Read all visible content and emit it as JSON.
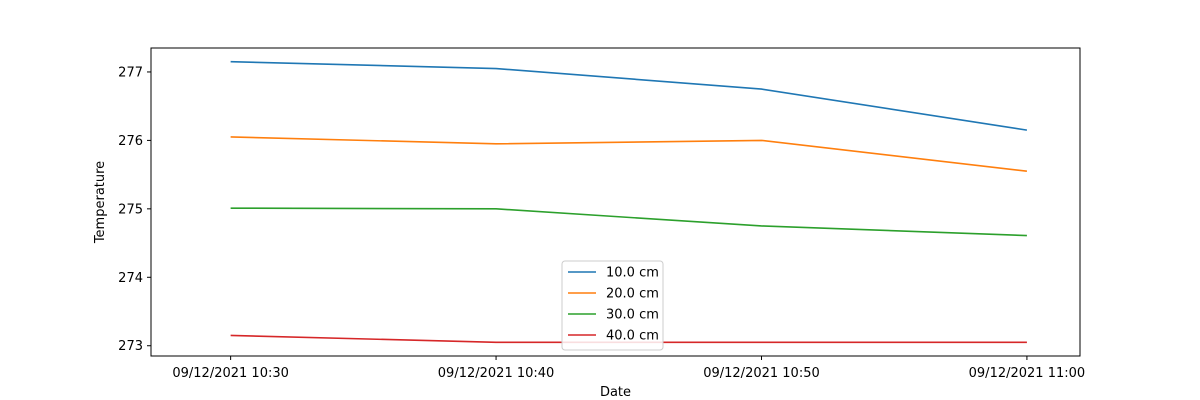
{
  "chart_data": {
    "type": "line",
    "title": "",
    "xlabel": "Date",
    "ylabel": "Temperature",
    "x": [
      "09/12/2021 10:30",
      "09/12/2021 10:40",
      "09/12/2021 10:50",
      "09/12/2021 11:00"
    ],
    "xlim": [
      "09/12/2021 10:27",
      "09/12/2021 11:02"
    ],
    "ylim": [
      272.85,
      277.35
    ],
    "y_ticks": [
      273,
      274,
      275,
      276,
      277
    ],
    "grid": false,
    "legend_position": "bottom-center",
    "series": [
      {
        "name": "10.0 cm",
        "color": "#1f77b4",
        "values": [
          277.15,
          277.05,
          276.75,
          276.15
        ]
      },
      {
        "name": "20.0 cm",
        "color": "#ff7f0e",
        "values": [
          276.05,
          275.95,
          276.0,
          275.55
        ]
      },
      {
        "name": "30.0 cm",
        "color": "#2ca02c",
        "values": [
          275.01,
          275.0,
          274.75,
          274.61
        ]
      },
      {
        "name": "40.0 cm",
        "color": "#d62728",
        "values": [
          273.15,
          273.05,
          273.05,
          273.05
        ]
      }
    ]
  }
}
